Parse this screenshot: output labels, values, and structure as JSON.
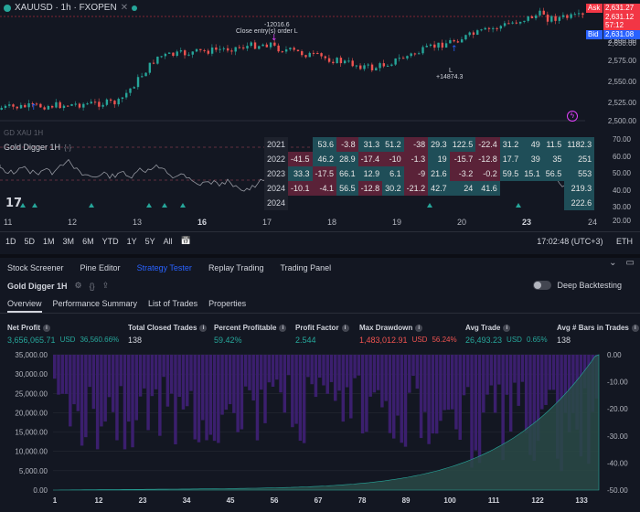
{
  "symbol": {
    "name": "XAUUSD · 1h · FXOPEN",
    "close_icon": "close-icon"
  },
  "price_tags": {
    "ask_label": "Ask",
    "ask_price": "2,631.27",
    "ask_sub": "57:12",
    "last_price": "2,631.12",
    "bid_label": "Bid",
    "bid_price": "2,631.08",
    "colors": {
      "ask": "#f23645",
      "bid": "#2962ff",
      "last": "#f23645"
    }
  },
  "price_axis": [
    "2,650.00",
    "2,625.00",
    "2,600.00",
    "2,575.00",
    "2,550.00",
    "2,525.00",
    "2,500.00"
  ],
  "annotations": {
    "top_value": "-12016.6",
    "top_text": "Close entry(s) order L",
    "bottom_value": "L",
    "bottom_text": "+14874.3"
  },
  "gd_label": "GD XAU 1H",
  "indicator": {
    "title": "Gold Digger 1H",
    "axis": [
      "70.00",
      "60.00",
      "50.00",
      "40.00",
      "30.00",
      "20.00"
    ]
  },
  "yearly_table": [
    {
      "year": "2021",
      "cells": [
        "",
        "53.6",
        "-3.8",
        "31.3",
        "51.2",
        "-38",
        "29.3",
        "122.5",
        "-22.4",
        "31.2",
        "49",
        "11.5"
      ],
      "total": "1182.3"
    },
    {
      "year": "2022",
      "cells": [
        "-41.5",
        "46.2",
        "28.9",
        "-17.4",
        "-10",
        "-1.3",
        "19",
        "-15.7",
        "-12.8",
        "17.7",
        "39",
        "35"
      ],
      "total": "251"
    },
    {
      "year": "2023",
      "cells": [
        "33.3",
        "-17.5",
        "66.1",
        "12.9",
        "6.1",
        "-9",
        "21.6",
        "-3.2",
        "-0.2",
        "59.5",
        "15.1",
        "56.5"
      ],
      "total": "553"
    },
    {
      "year": "2024",
      "cells": [
        "-10.1",
        "-4.1",
        "56.5",
        "-12.8",
        "30.2",
        "-21.2",
        "42.7",
        "24",
        "41.6",
        "",
        "",
        ""
      ],
      "total": "219.3"
    },
    {
      "year": "2024",
      "cells": [
        "",
        "",
        "",
        "",
        "",
        "",
        "",
        "",
        "",
        "",
        "",
        ""
      ],
      "total": "222.6"
    }
  ],
  "time_axis": [
    {
      "label": "11",
      "bold": false
    },
    {
      "label": "12",
      "bold": false
    },
    {
      "label": "13",
      "bold": false
    },
    {
      "label": "16",
      "bold": true
    },
    {
      "label": "17",
      "bold": false
    },
    {
      "label": "18",
      "bold": false
    },
    {
      "label": "19",
      "bold": false
    },
    {
      "label": "20",
      "bold": false
    },
    {
      "label": "23",
      "bold": true
    },
    {
      "label": "24",
      "bold": false
    }
  ],
  "range_buttons": [
    "1D",
    "5D",
    "1M",
    "3M",
    "6M",
    "YTD",
    "1Y",
    "5Y",
    "All"
  ],
  "clock": "17:02:48 (UTC+3)",
  "session": "ETH",
  "bottom_tabs": [
    "Stock Screener",
    "Pine Editor",
    "Strategy Tester",
    "Replay Trading",
    "Trading Panel"
  ],
  "active_bottom_tab": "Strategy Tester",
  "strategy_name": "Gold Digger 1H",
  "deep_backtesting": "Deep Backtesting",
  "sub_tabs": [
    "Overview",
    "Performance Summary",
    "List of Trades",
    "Properties"
  ],
  "metrics": [
    {
      "label": "Net Profit",
      "value": "3,656,065.71",
      "unit": "USD",
      "pct": "36,560.66%",
      "color": "green"
    },
    {
      "label": "Total Closed Trades",
      "value": "138",
      "unit": "",
      "pct": "",
      "color": "white"
    },
    {
      "label": "Percent Profitable",
      "value": "59.42%",
      "unit": "",
      "pct": "",
      "color": "green"
    },
    {
      "label": "Profit Factor",
      "value": "2.544",
      "unit": "",
      "pct": "",
      "color": "green"
    },
    {
      "label": "Max Drawdown",
      "value": "1,483,012.91",
      "unit": "USD",
      "pct": "56.24%",
      "color": "red"
    },
    {
      "label": "Avg Trade",
      "value": "26,493.23",
      "unit": "USD",
      "pct": "0.65%",
      "color": "green"
    },
    {
      "label": "Avg # Bars in Trades",
      "value": "138",
      "unit": "",
      "pct": "",
      "color": "white"
    }
  ],
  "chart_data": {
    "type": "area",
    "left_axis": [
      "35,000.00",
      "30,000.00",
      "25,000.00",
      "20,000.00",
      "15,000.00",
      "10,000.00",
      "5,000.00",
      "0.00"
    ],
    "right_axis": [
      "0.00",
      "-10.00",
      "-20.00",
      "-30.00",
      "-40.00",
      "-50.00"
    ],
    "x_ticks": [
      "1",
      "12",
      "23",
      "34",
      "45",
      "56",
      "67",
      "78",
      "89",
      "100",
      "111",
      "122",
      "133"
    ],
    "ylim_left": [
      0,
      35000
    ],
    "ylim_right": [
      -50,
      0
    ],
    "equity_color": "#2a4a47",
    "drawdown_color": "#3b1f6e"
  }
}
